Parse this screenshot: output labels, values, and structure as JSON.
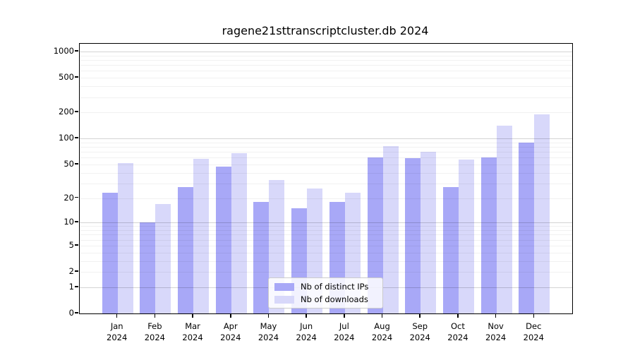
{
  "chart_data": {
    "type": "bar",
    "title": "ragene21sttranscriptcluster.db 2024",
    "categories": [
      "Jan",
      "Feb",
      "Mar",
      "Apr",
      "May",
      "Jun",
      "Jul",
      "Aug",
      "Sep",
      "Oct",
      "Nov",
      "Dec"
    ],
    "year": "2024",
    "series": [
      {
        "name": "Nb of distinct IPs",
        "color": "#a8a8f7",
        "values": [
          23,
          10,
          27,
          47,
          18,
          15,
          18,
          60,
          59,
          27,
          60,
          90
        ]
      },
      {
        "name": "Nb of downloads",
        "color": "#d8d8fa",
        "values": [
          52,
          17,
          58,
          68,
          33,
          26,
          23,
          82,
          70,
          57,
          140,
          190
        ]
      }
    ],
    "yticks": [
      0,
      1,
      2,
      5,
      10,
      20,
      50,
      100,
      200,
      500,
      1000
    ],
    "scale": "log1p",
    "ylim": [
      0,
      1228
    ],
    "grid": "both",
    "legend_position": "lower center"
  }
}
